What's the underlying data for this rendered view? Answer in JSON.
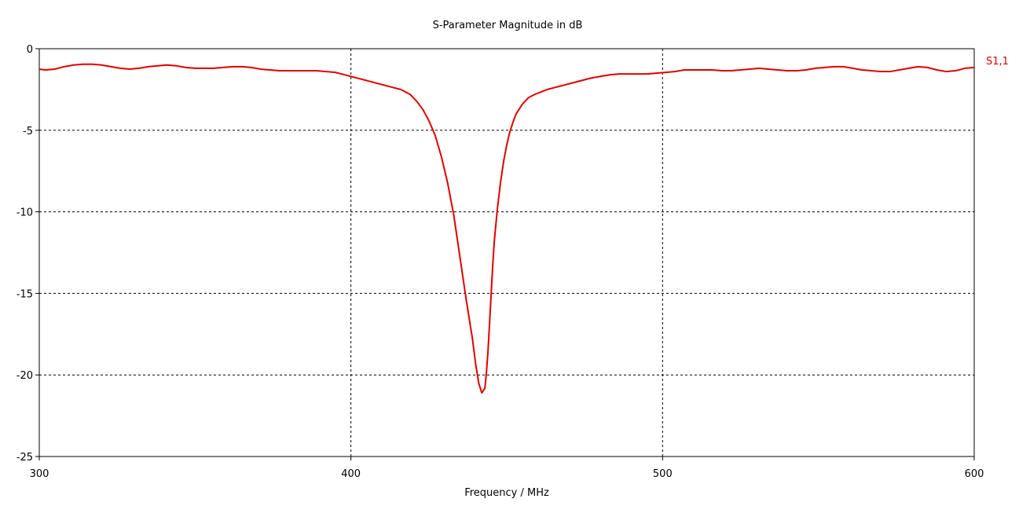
{
  "chart_data": {
    "type": "line",
    "title": "S-Parameter Magnitude in dB",
    "xlabel": "Frequency / MHz",
    "ylabel": "",
    "xlim": [
      300,
      600
    ],
    "ylim": [
      -25,
      0
    ],
    "x_ticks": [
      300,
      400,
      500,
      600
    ],
    "y_ticks": [
      0,
      -5,
      -10,
      -15,
      -20,
      -25
    ],
    "grid": true,
    "grid_style": "dashed",
    "legend_placement": "right",
    "series": [
      {
        "name": "S1,1",
        "color": "#e00000",
        "x": [
          300,
          302,
          305,
          308,
          311,
          314,
          317,
          320,
          323,
          326,
          329,
          332,
          335,
          338,
          341,
          344,
          347,
          350,
          353,
          356,
          359,
          362,
          365,
          368,
          371,
          374,
          377,
          380,
          383,
          386,
          389,
          392,
          395,
          398,
          401,
          404,
          407,
          410,
          413,
          416,
          419,
          421,
          423,
          425,
          427,
          429,
          431,
          433,
          435,
          437,
          439,
          440,
          441,
          442,
          443,
          443.5,
          444,
          444.5,
          445,
          445.5,
          446,
          447,
          448,
          449,
          450,
          451,
          452,
          453,
          455,
          457,
          459,
          461,
          463,
          465,
          467,
          469,
          471,
          474,
          477,
          480,
          483,
          486,
          489,
          492,
          495,
          498,
          501,
          504,
          507,
          510,
          513,
          516,
          519,
          522,
          525,
          528,
          531,
          534,
          537,
          540,
          543,
          546,
          549,
          552,
          555,
          558,
          561,
          564,
          567,
          570,
          573,
          576,
          579,
          582,
          585,
          588,
          591,
          594,
          597,
          600
        ],
        "y": [
          -1.25,
          -1.3,
          -1.25,
          -1.1,
          -1.0,
          -0.95,
          -0.95,
          -1.0,
          -1.1,
          -1.2,
          -1.25,
          -1.2,
          -1.1,
          -1.05,
          -1.0,
          -1.05,
          -1.15,
          -1.2,
          -1.2,
          -1.2,
          -1.15,
          -1.1,
          -1.1,
          -1.15,
          -1.25,
          -1.3,
          -1.35,
          -1.35,
          -1.35,
          -1.35,
          -1.35,
          -1.4,
          -1.45,
          -1.6,
          -1.75,
          -1.9,
          -2.05,
          -2.2,
          -2.35,
          -2.5,
          -2.8,
          -3.2,
          -3.7,
          -4.4,
          -5.3,
          -6.6,
          -8.2,
          -10.2,
          -12.8,
          -15.4,
          -17.8,
          -19.3,
          -20.5,
          -21.1,
          -20.8,
          -19.8,
          -18.5,
          -16.8,
          -15.0,
          -13.3,
          -11.8,
          -9.8,
          -8.2,
          -6.9,
          -5.9,
          -5.1,
          -4.5,
          -4.0,
          -3.4,
          -3.0,
          -2.8,
          -2.65,
          -2.5,
          -2.4,
          -2.3,
          -2.2,
          -2.1,
          -1.95,
          -1.8,
          -1.7,
          -1.6,
          -1.55,
          -1.55,
          -1.55,
          -1.55,
          -1.5,
          -1.45,
          -1.4,
          -1.3,
          -1.3,
          -1.3,
          -1.3,
          -1.35,
          -1.35,
          -1.3,
          -1.25,
          -1.2,
          -1.25,
          -1.3,
          -1.35,
          -1.35,
          -1.3,
          -1.2,
          -1.15,
          -1.1,
          -1.1,
          -1.2,
          -1.3,
          -1.35,
          -1.4,
          -1.4,
          -1.3,
          -1.2,
          -1.1,
          -1.15,
          -1.3,
          -1.4,
          -1.35,
          -1.2,
          -1.15
        ]
      }
    ]
  }
}
